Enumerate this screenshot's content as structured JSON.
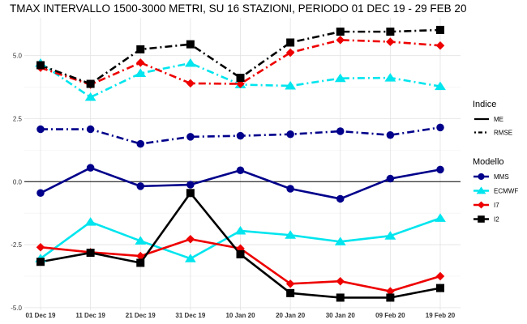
{
  "chart_data": {
    "type": "line",
    "title": "TMAX INTERVALLO 1500-3000 METRI, SU 16 STAZIONI, PERIODO 01 DEC 19  -  29 FEB 20",
    "xlabel": "",
    "ylabel": "",
    "categories": [
      "01 Dec 19",
      "11 Dec 19",
      "21 Dec 19",
      "31 Dec 19",
      "10 Jan 20",
      "20 Jan 20",
      "30 Jan 20",
      "09 Feb 20",
      "19 Feb 20"
    ],
    "ylim": [
      -5.1,
      6.5
    ],
    "yticks": [
      -5.0,
      -2.5,
      0.0,
      2.5,
      5.0
    ],
    "ytick_labels": [
      "-5.0",
      "-2.5",
      "0.0",
      "2.5",
      "5.0"
    ],
    "grid": true,
    "zero_line": true,
    "legend_position": "right",
    "legend": {
      "linetype_title": "Indice",
      "linetypes": [
        {
          "name": "ME",
          "dash": "solid"
        },
        {
          "name": "RMSE",
          "dash": "dotdash"
        }
      ],
      "model_title": "Modello"
    },
    "series": [
      {
        "name": "MMS",
        "color": "#00008b",
        "marker": "circle",
        "index": "ME",
        "values": [
          -0.45,
          0.55,
          -0.18,
          -0.12,
          0.45,
          -0.28,
          -0.68,
          0.12,
          0.48
        ]
      },
      {
        "name": "MMS",
        "color": "#00008b",
        "marker": "circle",
        "index": "RMSE",
        "values": [
          2.08,
          2.08,
          1.5,
          1.78,
          1.82,
          1.88,
          2.0,
          1.85,
          2.15
        ]
      },
      {
        "name": "ECMWF",
        "color": "#00e5ee",
        "marker": "triangle",
        "index": "ME",
        "values": [
          -3.05,
          -1.6,
          -2.35,
          -3.05,
          -1.95,
          -2.12,
          -2.38,
          -2.15,
          -1.45
        ]
      },
      {
        "name": "ECMWF",
        "color": "#00e5ee",
        "marker": "triangle",
        "index": "RMSE",
        "values": [
          4.7,
          3.35,
          4.3,
          4.7,
          3.85,
          3.8,
          4.1,
          4.12,
          3.78
        ]
      },
      {
        "name": "I7",
        "color": "#ee0000",
        "marker": "diamond",
        "index": "ME",
        "values": [
          -2.6,
          -2.8,
          -2.95,
          -2.28,
          -2.65,
          -4.05,
          -3.95,
          -4.35,
          -3.75
        ]
      },
      {
        "name": "I7",
        "color": "#ee0000",
        "marker": "diamond",
        "index": "RMSE",
        "values": [
          4.52,
          3.85,
          4.72,
          3.9,
          3.88,
          5.12,
          5.62,
          5.55,
          5.4
        ]
      },
      {
        "name": "I2",
        "color": "#000000",
        "marker": "square",
        "index": "ME",
        "values": [
          -3.18,
          -2.82,
          -3.22,
          -0.45,
          -2.88,
          -4.42,
          -4.6,
          -4.6,
          -4.22
        ]
      },
      {
        "name": "I2",
        "color": "#000000",
        "marker": "square",
        "index": "RMSE",
        "values": [
          4.62,
          3.88,
          5.25,
          5.45,
          4.12,
          5.52,
          5.95,
          5.95,
          6.02
        ]
      }
    ]
  }
}
